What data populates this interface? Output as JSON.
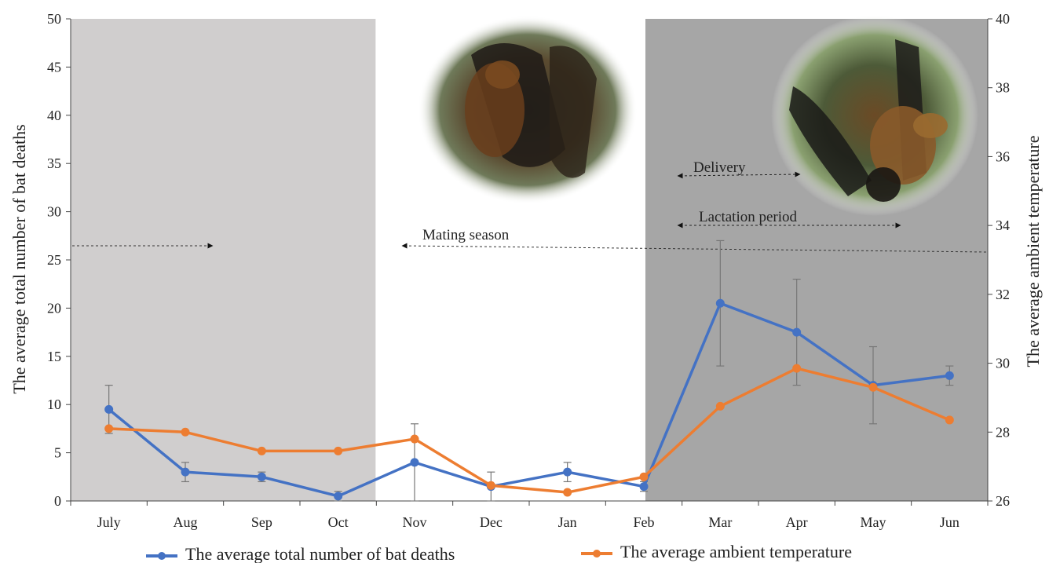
{
  "chart_data": {
    "type": "line",
    "title": "",
    "categories": [
      "July",
      "Aug",
      "Sep",
      "Oct",
      "Nov",
      "Dec",
      "Jan",
      "Feb",
      "Mar",
      "Apr",
      "May",
      "Jun"
    ],
    "ylabel": "The average total number of bat deaths",
    "y2label": "The average ambient temperature",
    "ylim": [
      0,
      50
    ],
    "y2lim": [
      26,
      40
    ],
    "yticks": [
      0,
      5,
      10,
      15,
      20,
      25,
      30,
      35,
      40,
      45,
      50
    ],
    "y2ticks": [
      26,
      28,
      30,
      32,
      34,
      36,
      38,
      40
    ],
    "grid": false,
    "legend_position": "bottom",
    "series": [
      {
        "name": "The average total number of bat deaths",
        "axis": "left",
        "color": "#4472C4",
        "values": [
          9.5,
          3,
          2.5,
          0.5,
          4,
          1.5,
          3,
          1.5,
          20.5,
          17.5,
          12,
          13
        ],
        "error": [
          2.5,
          1,
          0.5,
          0.5,
          4,
          1.5,
          1,
          0.5,
          6.5,
          5.5,
          4,
          1
        ]
      },
      {
        "name": "The average ambient temperature",
        "axis": "right",
        "color": "#ED7D31",
        "values": [
          28.1,
          28.0,
          27.45,
          27.45,
          27.8,
          26.45,
          26.25,
          26.7,
          28.75,
          29.85,
          29.3,
          28.35
        ]
      }
    ],
    "shaded_regions": [
      {
        "from": "July",
        "to": "Oct",
        "color": "#d0cece"
      },
      {
        "from": "Mar",
        "to": "Jun",
        "color": "#a6a6a6"
      }
    ],
    "annotations": [
      {
        "text": "Mating season"
      },
      {
        "text": "Delivery"
      },
      {
        "text": "Lactation period"
      }
    ]
  }
}
